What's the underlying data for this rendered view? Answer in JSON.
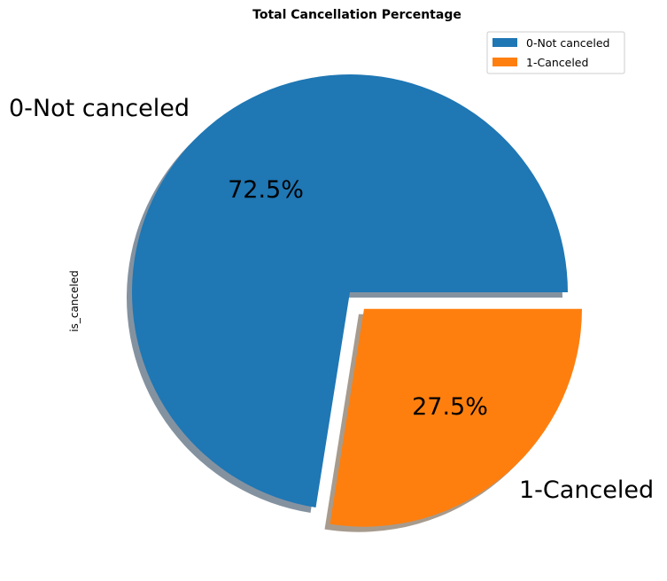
{
  "chart_data": {
    "type": "pie",
    "title": "Total Cancellation Percentage",
    "ylabel": "is_canceled",
    "labels": [
      "0-Not canceled",
      "1-Canceled"
    ],
    "values": [
      72.5,
      27.5
    ],
    "percent_labels": [
      "72.5%",
      "27.5%"
    ],
    "colors": [
      "#1f77b4",
      "#ff7f0e"
    ],
    "explode": [
      0,
      0.1
    ],
    "shadow": true,
    "start_angle": 0,
    "legend": {
      "placement": "top-right",
      "entries": [
        "0-Not canceled",
        "1-Canceled"
      ]
    }
  }
}
